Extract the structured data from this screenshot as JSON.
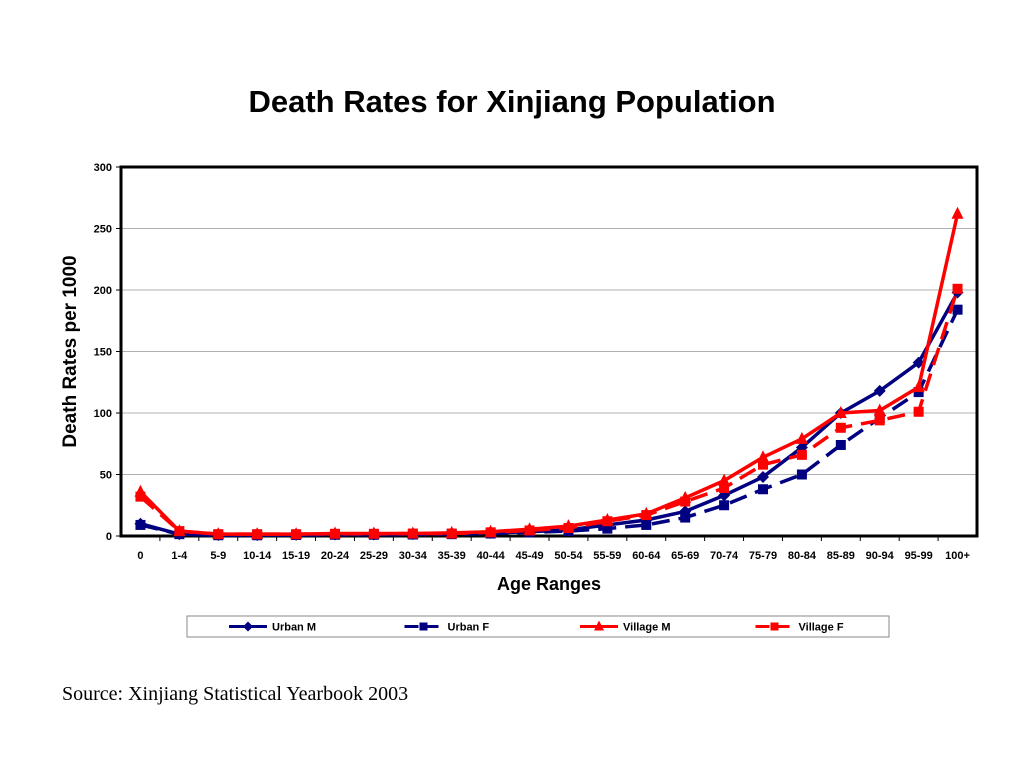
{
  "chart_data": {
    "type": "line",
    "title": "Death Rates for Xinjiang Population",
    "xlabel": "Age Ranges",
    "ylabel": "Death Rates per 1000",
    "ylim": [
      0,
      300
    ],
    "yticks": [
      0,
      50,
      100,
      150,
      200,
      250,
      300
    ],
    "grid": true,
    "legend_position": "bottom",
    "categories": [
      "0",
      "1-4",
      "5-9",
      "10-14",
      "15-19",
      "20-24",
      "25-29",
      "30-34",
      "35-39",
      "40-44",
      "45-49",
      "50-54",
      "55-59",
      "60-64",
      "65-69",
      "70-74",
      "75-79",
      "80-84",
      "85-89",
      "90-94",
      "95-99",
      "100+"
    ],
    "series": [
      {
        "name": "Urban M",
        "color": "#000080",
        "dash": "solid",
        "marker": "diamond",
        "values": [
          10,
          1.5,
          0.8,
          0.8,
          1,
          1.2,
          1.2,
          1.5,
          2,
          2.5,
          3.5,
          5,
          9,
          13,
          20,
          33,
          48,
          72,
          100,
          118,
          141,
          198
        ]
      },
      {
        "name": "Urban F",
        "color": "#000080",
        "dash": "dashed",
        "marker": "square",
        "values": [
          9,
          1.5,
          0.6,
          0.6,
          0.8,
          1,
          1,
          1.2,
          1.5,
          2,
          3,
          4,
          6,
          9,
          15,
          25,
          38,
          50,
          74,
          96,
          117,
          184
        ]
      },
      {
        "name": "Village M",
        "color": "#ff0000",
        "dash": "solid",
        "marker": "triangle",
        "values": [
          36,
          4,
          1.5,
          1.5,
          1.5,
          2,
          2,
          2,
          2.5,
          3.5,
          5.5,
          8,
          13,
          18,
          31,
          45,
          64,
          79,
          100,
          102,
          121,
          262
        ]
      },
      {
        "name": "Village F",
        "color": "#ff0000",
        "dash": "dashed",
        "marker": "square",
        "values": [
          32,
          4,
          1.5,
          1.5,
          1.5,
          1.8,
          1.8,
          2,
          2,
          3,
          4.5,
          6.5,
          12,
          17,
          28,
          39,
          58,
          66,
          88,
          94,
          101,
          201
        ]
      }
    ]
  },
  "source": "Source: Xinjiang Statistical Yearbook 2003"
}
